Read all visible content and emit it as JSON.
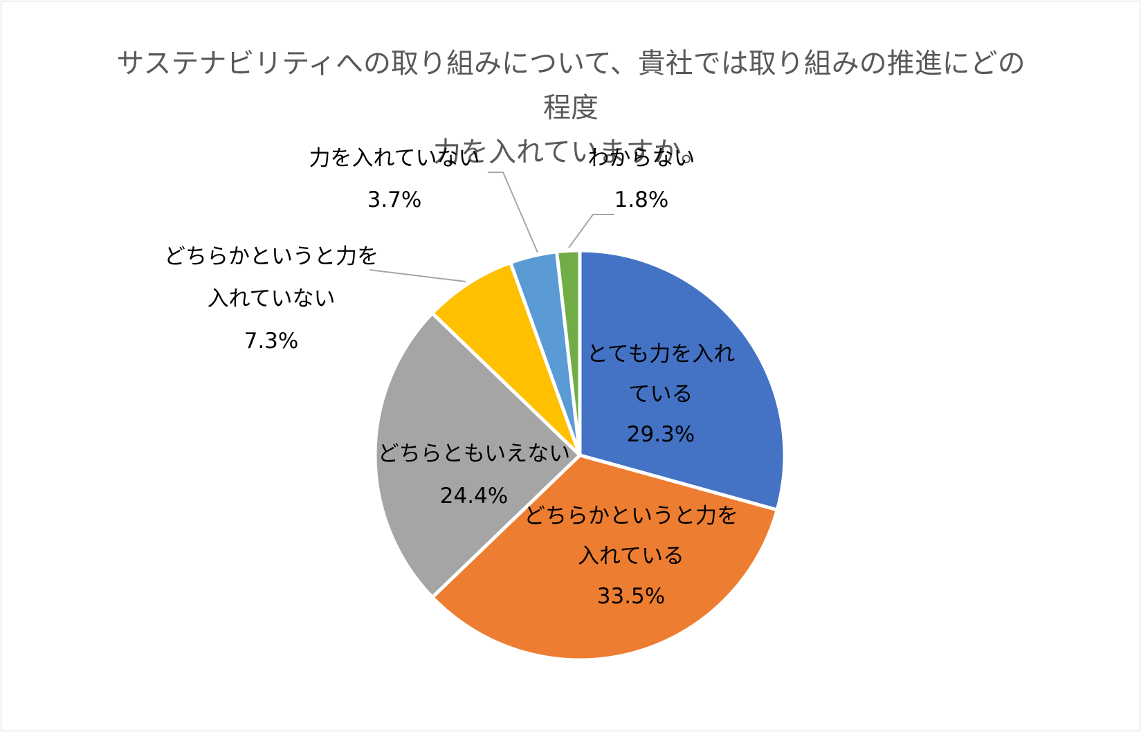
{
  "chart_data": {
    "type": "pie",
    "title": "サステナビリティへの取り組みについて、貴社では取り組みの推進にどの程度\n力を入れていますか。",
    "slices": [
      {
        "label_lines": [
          "とても力を入れ",
          "ている"
        ],
        "value": 29.3,
        "value_label": "29.3%",
        "color": "#4472C4"
      },
      {
        "label_lines": [
          "どちらかというと力を",
          "入れている"
        ],
        "value": 33.5,
        "value_label": "33.5%",
        "color": "#ED7D31"
      },
      {
        "label_lines": [
          "どちらともいえない"
        ],
        "value": 24.4,
        "value_label": "24.4%",
        "color": "#A5A5A5"
      },
      {
        "label_lines": [
          "どちらかというと力を",
          "入れていない"
        ],
        "value": 7.3,
        "value_label": "7.3%",
        "color": "#FFC000"
      },
      {
        "label_lines": [
          "力を入れていない"
        ],
        "value": 3.7,
        "value_label": "3.7%",
        "color": "#5B9BD5"
      },
      {
        "label_lines": [
          "わからない"
        ],
        "value": 1.8,
        "value_label": "1.8%",
        "color": "#70AD47"
      }
    ],
    "start_angle": "12 o'clock",
    "direction": "clockwise",
    "label_color": "#000000",
    "leader_line_color": "#a6a6a6",
    "legend": "none"
  }
}
